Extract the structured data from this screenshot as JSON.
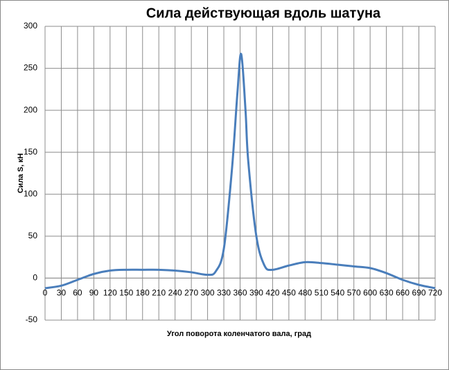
{
  "chart_data": {
    "type": "line",
    "title": "Сила действующая вдоль шатуна",
    "x_label": "Угол поворота коленчатого вала, град",
    "y_label": "Сила S, кН",
    "x": [
      0,
      30,
      60,
      90,
      120,
      150,
      180,
      210,
      240,
      270,
      300,
      315,
      330,
      345,
      355,
      362,
      370,
      375,
      390,
      405,
      420,
      450,
      480,
      510,
      540,
      570,
      600,
      630,
      660,
      690,
      720
    ],
    "series": [
      {
        "name": "S",
        "color": "#4a7ebb",
        "values": [
          -12,
          -9,
          -2,
          5,
          9,
          10,
          10,
          10,
          9,
          7,
          4,
          8,
          35,
          130,
          220,
          267,
          200,
          140,
          50,
          15,
          10,
          15,
          19,
          18,
          16,
          14,
          12,
          6,
          -2,
          -8,
          -12
        ]
      }
    ],
    "xlim": [
      0,
      720
    ],
    "ylim": [
      -50,
      300
    ],
    "xticks": [
      0,
      30,
      60,
      90,
      120,
      150,
      180,
      210,
      240,
      270,
      300,
      330,
      360,
      390,
      420,
      450,
      480,
      510,
      540,
      570,
      600,
      630,
      660,
      690,
      720
    ],
    "yticks": [
      -50,
      0,
      50,
      100,
      150,
      200,
      250,
      300
    ],
    "grid": true
  }
}
